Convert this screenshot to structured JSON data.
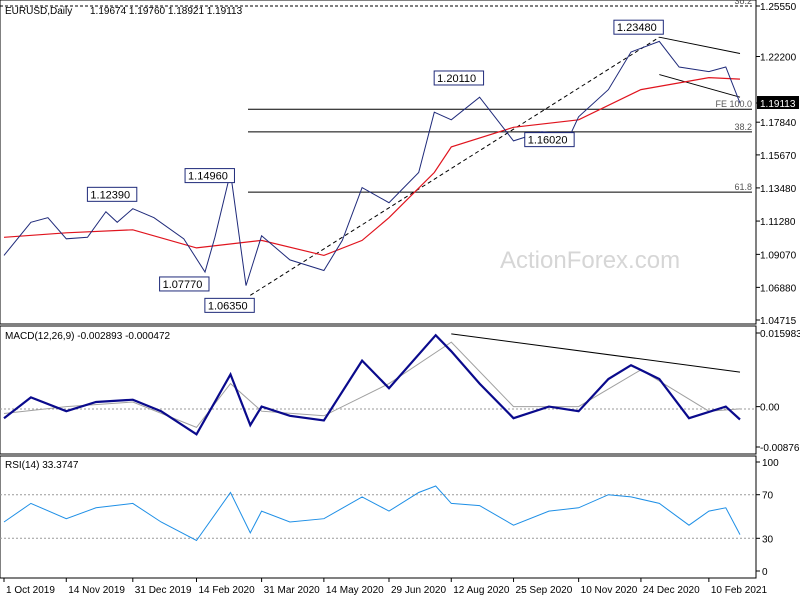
{
  "header": {
    "symbol_info": "EURUSD,Daily",
    "ohlc": "1.19674 1.19760 1.18921 1.19113"
  },
  "watermark": "ActionForex.com",
  "colors": {
    "candles": "#1f2a7a",
    "ma": "#e0141e",
    "macd_main": "#0a0a8c",
    "macd_signal": "#a0a0a0",
    "rsi": "#1e8fe6",
    "price_tag_bg": "#000000",
    "lines": "#000000"
  },
  "chart_data": [
    {
      "type": "candlestick",
      "panel": "price",
      "title": "EURUSD,Daily 1.19674 1.19760 1.18921 1.19113",
      "ylim": [
        1.04715,
        1.2555
      ],
      "y_ticks": [
        "1.25550",
        "1.22200",
        "1.19113",
        "1.17840",
        "1.15670",
        "1.13480",
        "1.11280",
        "1.09070",
        "1.06880",
        "1.04715"
      ],
      "last_price": "1.19113",
      "x_dates": [
        "1 Oct 2019",
        "14 Nov 2019",
        "31 Dec 2019",
        "14 Feb 2020",
        "31 Mar 2020",
        "14 May 2020",
        "29 Jun 2020",
        "12 Aug 2020",
        "25 Sep 2020",
        "10 Nov 2020",
        "24 Dec 2020",
        "10 Feb 2021"
      ],
      "close_series": [
        {
          "date": "1 Oct 2019",
          "value": 1.09
        },
        {
          "date": "20 Oct 2019",
          "value": 1.112
        },
        {
          "date": "1 Nov 2019",
          "value": 1.115
        },
        {
          "date": "14 Nov 2019",
          "value": 1.101
        },
        {
          "date": "29 Nov 2019",
          "value": 1.102
        },
        {
          "date": "12 Dec 2019",
          "value": 1.119
        },
        {
          "date": "20 Dec 2019",
          "value": 1.112
        },
        {
          "date": "31 Dec 2019",
          "value": 1.121
        },
        {
          "date": "15 Jan 2020",
          "value": 1.115
        },
        {
          "date": "5 Feb 2020",
          "value": 1.101
        },
        {
          "date": "20 Feb 2020",
          "value": 1.079
        },
        {
          "date": "27 Feb 2020",
          "value": 1.102
        },
        {
          "date": "9 Mar 2020",
          "value": 1.145
        },
        {
          "date": "20 Mar 2020",
          "value": 1.07
        },
        {
          "date": "31 Mar 2020",
          "value": 1.103
        },
        {
          "date": "20 Apr 2020",
          "value": 1.087
        },
        {
          "date": "14 May 2020",
          "value": 1.08
        },
        {
          "date": "27 May 2020",
          "value": 1.1
        },
        {
          "date": "10 Jun 2020",
          "value": 1.135
        },
        {
          "date": "29 Jun 2020",
          "value": 1.125
        },
        {
          "date": "20 Jul 2020",
          "value": 1.145
        },
        {
          "date": "31 Jul 2020",
          "value": 1.185
        },
        {
          "date": "12 Aug 2020",
          "value": 1.18
        },
        {
          "date": "1 Sep 2020",
          "value": 1.195
        },
        {
          "date": "25 Sep 2020",
          "value": 1.166
        },
        {
          "date": "15 Oct 2020",
          "value": 1.172
        },
        {
          "date": "4 Nov 2020",
          "value": 1.17
        },
        {
          "date": "10 Nov 2020",
          "value": 1.182
        },
        {
          "date": "1 Dec 2020",
          "value": 1.2
        },
        {
          "date": "17 Dec 2020",
          "value": 1.225
        },
        {
          "date": "6 Jan 2021",
          "value": 1.232
        },
        {
          "date": "20 Jan 2021",
          "value": 1.215
        },
        {
          "date": "10 Feb 2021",
          "value": 1.212
        },
        {
          "date": "22 Feb 2021",
          "value": 1.215
        },
        {
          "date": "4 Mar 2021",
          "value": 1.1911
        }
      ],
      "moving_average": [
        {
          "date": "1 Oct 2019",
          "value": 1.102
        },
        {
          "date": "14 Nov 2019",
          "value": 1.105
        },
        {
          "date": "31 Dec 2019",
          "value": 1.107
        },
        {
          "date": "14 Feb 2020",
          "value": 1.095
        },
        {
          "date": "31 Mar 2020",
          "value": 1.1
        },
        {
          "date": "14 May 2020",
          "value": 1.09
        },
        {
          "date": "10 Jun 2020",
          "value": 1.1
        },
        {
          "date": "29 Jun 2020",
          "value": 1.115
        },
        {
          "date": "31 Jul 2020",
          "value": 1.145
        },
        {
          "date": "12 Aug 2020",
          "value": 1.162
        },
        {
          "date": "25 Sep 2020",
          "value": 1.175
        },
        {
          "date": "10 Nov 2020",
          "value": 1.18
        },
        {
          "date": "24 Dec 2020",
          "value": 1.2
        },
        {
          "date": "10 Feb 2021",
          "value": 1.208
        },
        {
          "date": "4 Mar 2021",
          "value": 1.207
        }
      ],
      "annotations": [
        {
          "text": "1.23480",
          "date": "6 Jan 2021",
          "value": 1.2348
        },
        {
          "text": "1.20110",
          "date": "1 Sep 2020",
          "value": 1.2011
        },
        {
          "text": "1.16020",
          "date": "4 Nov 2020",
          "value": 1.1602
        },
        {
          "text": "1.14960",
          "date": "9 Mar 2020",
          "value": 1.1496
        },
        {
          "text": "1.12390",
          "date": "31 Dec 2019",
          "value": 1.1239
        },
        {
          "text": "1.07770",
          "date": "20 Feb 2020",
          "value": 1.0777
        },
        {
          "text": "1.06350",
          "date": "23 Mar 2020",
          "value": 1.0635
        }
      ],
      "levels": [
        {
          "label": "38.2",
          "value": 1.2555
        },
        {
          "label": "FE 100.0",
          "value": 1.187
        },
        {
          "label": "38.2",
          "value": 1.172
        },
        {
          "label": "61.8",
          "value": 1.132
        }
      ],
      "trendlines": [
        {
          "from": {
            "date": "23 Mar 2020",
            "value": 1.0635
          },
          "to": {
            "date": "6 Jan 2021",
            "value": 1.2348
          }
        },
        {
          "from": {
            "date": "6 Jan 2021",
            "value": 1.2348
          },
          "to": {
            "date": "4 Mar 2021",
            "value": 1.224
          }
        },
        {
          "from": {
            "date": "6 Jan 2021",
            "value": 1.21
          },
          "to": {
            "date": "4 Mar 2021",
            "value": 1.195
          }
        }
      ]
    },
    {
      "type": "line",
      "panel": "macd",
      "label": "MACD(12,26,9) -0.002893 -0.000472",
      "y_ticks": [
        "0.015983",
        "0.00",
        "-0.008762"
      ],
      "ylim": [
        -0.008762,
        0.015983
      ],
      "series": [
        {
          "name": "main",
          "points": [
            {
              "date": "1 Oct 2019",
              "value": -0.0025
            },
            {
              "date": "20 Oct 2019",
              "value": 0.002
            },
            {
              "date": "14 Nov 2019",
              "value": -0.001
            },
            {
              "date": "5 Dec 2019",
              "value": 0.001
            },
            {
              "date": "31 Dec 2019",
              "value": 0.0015
            },
            {
              "date": "20 Jan 2020",
              "value": -0.001
            },
            {
              "date": "14 Feb 2020",
              "value": -0.006
            },
            {
              "date": "9 Mar 2020",
              "value": 0.007
            },
            {
              "date": "23 Mar 2020",
              "value": -0.004
            },
            {
              "date": "31 Mar 2020",
              "value": 0.0
            },
            {
              "date": "20 Apr 2020",
              "value": -0.002
            },
            {
              "date": "14 May 2020",
              "value": -0.003
            },
            {
              "date": "10 Jun 2020",
              "value": 0.01
            },
            {
              "date": "29 Jun 2020",
              "value": 0.004
            },
            {
              "date": "1 Aug 2020",
              "value": 0.0155
            },
            {
              "date": "12 Aug 2020",
              "value": 0.012
            },
            {
              "date": "1 Sep 2020",
              "value": 0.005
            },
            {
              "date": "25 Sep 2020",
              "value": -0.0025
            },
            {
              "date": "20 Oct 2020",
              "value": 0.0
            },
            {
              "date": "10 Nov 2020",
              "value": -0.001
            },
            {
              "date": "1 Dec 2020",
              "value": 0.006
            },
            {
              "date": "17 Dec 2020",
              "value": 0.009
            },
            {
              "date": "6 Jan 2021",
              "value": 0.006
            },
            {
              "date": "27 Jan 2021",
              "value": -0.0025
            },
            {
              "date": "22 Feb 2021",
              "value": 0.0
            },
            {
              "date": "4 Mar 2021",
              "value": -0.0028
            }
          ]
        },
        {
          "name": "signal",
          "points": [
            {
              "date": "1 Oct 2019",
              "value": -0.0015
            },
            {
              "date": "14 Nov 2019",
              "value": 0.0
            },
            {
              "date": "31 Dec 2019",
              "value": 0.001
            },
            {
              "date": "14 Feb 2020",
              "value": -0.0045
            },
            {
              "date": "9 Mar 2020",
              "value": 0.005
            },
            {
              "date": "31 Mar 2020",
              "value": -0.001
            },
            {
              "date": "14 May 2020",
              "value": -0.002
            },
            {
              "date": "29 Jun 2020",
              "value": 0.005
            },
            {
              "date": "12 Aug 2020",
              "value": 0.014
            },
            {
              "date": "25 Sep 2020",
              "value": 0.0
            },
            {
              "date": "10 Nov 2020",
              "value": 0.0
            },
            {
              "date": "24 Dec 2020",
              "value": 0.008
            },
            {
              "date": "10 Feb 2021",
              "value": -0.001
            },
            {
              "date": "4 Mar 2021",
              "value": -0.0005
            }
          ]
        }
      ],
      "trendline": {
        "from": {
          "date": "12 Aug 2020",
          "value": 0.0158
        },
        "to": {
          "date": "4 Mar 2021",
          "value": 0.0075
        }
      }
    },
    {
      "type": "line",
      "panel": "rsi",
      "label": "RSI(14) 33.3747",
      "y_ticks": [
        "100",
        "70",
        "30",
        "0"
      ],
      "ylim": [
        0,
        100
      ],
      "levels": [
        70,
        30
      ],
      "series": [
        {
          "name": "rsi",
          "points": [
            {
              "date": "1 Oct 2019",
              "value": 45
            },
            {
              "date": "20 Oct 2019",
              "value": 62
            },
            {
              "date": "14 Nov 2019",
              "value": 48
            },
            {
              "date": "5 Dec 2019",
              "value": 58
            },
            {
              "date": "31 Dec 2019",
              "value": 62
            },
            {
              "date": "20 Jan 2020",
              "value": 45
            },
            {
              "date": "14 Feb 2020",
              "value": 28
            },
            {
              "date": "9 Mar 2020",
              "value": 72
            },
            {
              "date": "23 Mar 2020",
              "value": 35
            },
            {
              "date": "31 Mar 2020",
              "value": 55
            },
            {
              "date": "20 Apr 2020",
              "value": 45
            },
            {
              "date": "14 May 2020",
              "value": 48
            },
            {
              "date": "10 Jun 2020",
              "value": 68
            },
            {
              "date": "29 Jun 2020",
              "value": 55
            },
            {
              "date": "20 Jul 2020",
              "value": 72
            },
            {
              "date": "1 Aug 2020",
              "value": 78
            },
            {
              "date": "12 Aug 2020",
              "value": 62
            },
            {
              "date": "1 Sep 2020",
              "value": 60
            },
            {
              "date": "25 Sep 2020",
              "value": 42
            },
            {
              "date": "20 Oct 2020",
              "value": 55
            },
            {
              "date": "10 Nov 2020",
              "value": 58
            },
            {
              "date": "1 Dec 2020",
              "value": 70
            },
            {
              "date": "17 Dec 2020",
              "value": 68
            },
            {
              "date": "6 Jan 2021",
              "value": 62
            },
            {
              "date": "27 Jan 2021",
              "value": 42
            },
            {
              "date": "10 Feb 2021",
              "value": 55
            },
            {
              "date": "22 Feb 2021",
              "value": 58
            },
            {
              "date": "4 Mar 2021",
              "value": 33.37
            }
          ]
        }
      ]
    }
  ]
}
